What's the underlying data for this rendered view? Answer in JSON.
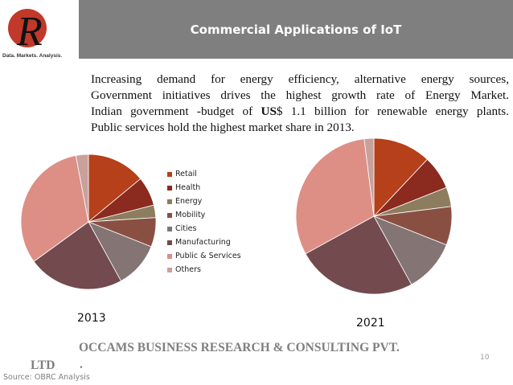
{
  "header": {
    "title": "Commercial Applications of IoT"
  },
  "logo": {
    "letter": "R",
    "caption": "Data. Markets. Analysis.",
    "circle_color": "#c0392b"
  },
  "body": {
    "lines": [
      "Increasing demand for energy efficiency, alternative energy sources,",
      "Government initiatives drives the highest growth rate of Energy Market.",
      "Indian government  -budget of ",
      "Public services hold the highest market share in 2013."
    ],
    "line3_bold": "US",
    "line3_rest": "$ 1.1 billion for renewable energy plants."
  },
  "chart_data": [
    {
      "type": "pie",
      "title": "2013",
      "categories": [
        "Retail",
        "Health",
        "Energy",
        "Mobility",
        "Cities",
        "Manufacturing",
        "Public & Services",
        "Others"
      ],
      "values": [
        14,
        7,
        3,
        7,
        11,
        23,
        32,
        3
      ]
    },
    {
      "type": "pie",
      "title": "2021",
      "categories": [
        "Retail",
        "Health",
        "Energy",
        "Mobility",
        "Cities",
        "Manufacturing",
        "Public & Services",
        "Others"
      ],
      "values": [
        12,
        7,
        4,
        8,
        11,
        25,
        31,
        2
      ]
    }
  ],
  "legend": {
    "placement": "between-charts",
    "items": [
      {
        "label": "Retail",
        "color": "#b5401a"
      },
      {
        "label": "Health",
        "color": "#8b2a1f"
      },
      {
        "label": "Energy",
        "color": "#8d7d5f"
      },
      {
        "label": "Mobility",
        "color": "#8a4f43"
      },
      {
        "label": "Cities",
        "color": "#847474"
      },
      {
        "label": "Manufacturing",
        "color": "#734a4e"
      },
      {
        "label": "Public & Services",
        "color": "#dd8f86"
      },
      {
        "label": "Others",
        "color": "#c9a19c"
      }
    ]
  },
  "footer": {
    "company": "OCCAMS BUSINESS RESEARCH & CONSULTING PVT.",
    "ltd": "LTD",
    "dot": ".",
    "page_number": "10",
    "source": "Source: OBRC Analysis"
  }
}
